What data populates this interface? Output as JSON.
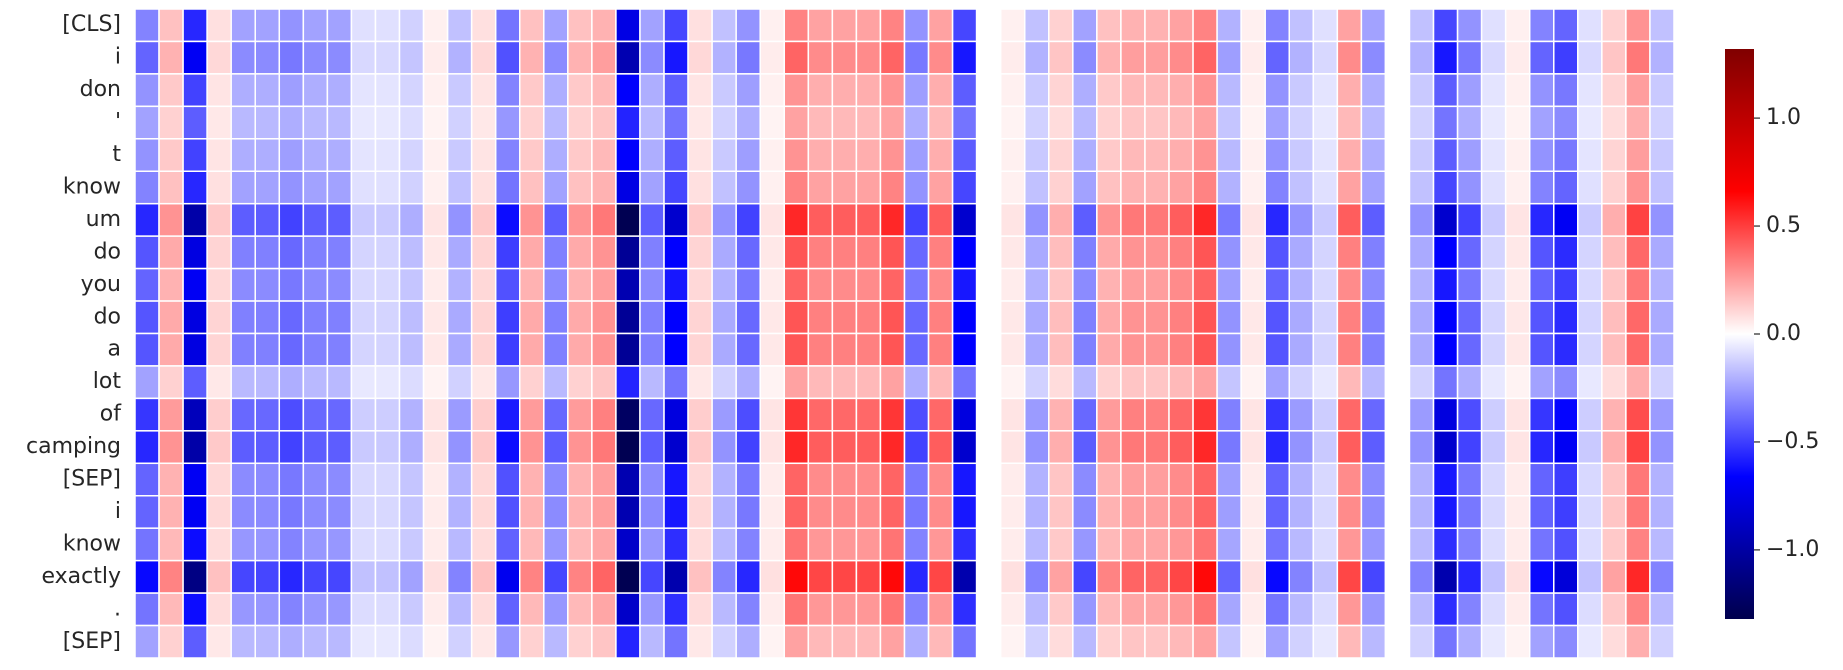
{
  "chart_data": {
    "type": "heatmap",
    "colormap": "seismic",
    "rows": [
      "[CLS]",
      "i",
      "don",
      "'",
      "t",
      "know",
      "um",
      "do",
      "you",
      "do",
      "a",
      "lot",
      "of",
      "camping",
      "[SEP]",
      "i",
      "know",
      "exactly",
      ".",
      "[SEP]"
    ],
    "values": [
      [
        -0.32,
        0.16,
        -0.56,
        0.08,
        -0.24,
        -0.24,
        -0.28,
        -0.24,
        -0.24,
        -0.08,
        -0.08,
        -0.12,
        0.04,
        -0.16,
        0.08,
        -0.36,
        0.16,
        -0.24,
        0.16,
        0.2,
        -0.76,
        -0.24,
        -0.48,
        0.08,
        -0.16,
        -0.28,
        0.04,
        0.32,
        0.24,
        0.24,
        0.24,
        0.32,
        -0.28,
        0.24,
        -0.48,
        0,
        0.04,
        -0.16,
        0.12,
        -0.24,
        0.16,
        0.2,
        0.2,
        0.24,
        0.32,
        -0.2,
        0.04,
        -0.32,
        -0.16,
        -0.08,
        0.24,
        -0.24,
        0,
        -0.16,
        -0.48,
        -0.28,
        -0.08,
        0.04,
        -0.32,
        -0.4,
        -0.08,
        0.12,
        0.28,
        -0.16
      ],
      [
        -0.4,
        0.2,
        -0.7,
        0.1,
        -0.3,
        -0.3,
        -0.35,
        -0.3,
        -0.3,
        -0.1,
        -0.1,
        -0.15,
        0.05,
        -0.2,
        0.1,
        -0.45,
        0.2,
        -0.3,
        0.2,
        0.25,
        -0.95,
        -0.3,
        -0.6,
        0.1,
        -0.2,
        -0.35,
        0.05,
        0.4,
        0.3,
        0.3,
        0.3,
        0.4,
        -0.35,
        0.3,
        -0.6,
        0,
        0.05,
        -0.2,
        0.15,
        -0.3,
        0.2,
        0.25,
        0.25,
        0.3,
        0.4,
        -0.25,
        0.05,
        -0.4,
        -0.2,
        -0.1,
        0.3,
        -0.3,
        0,
        -0.2,
        -0.6,
        -0.35,
        -0.1,
        0.05,
        -0.4,
        -0.5,
        -0.1,
        0.15,
        0.35,
        -0.2
      ],
      [
        -0.28,
        0.14,
        -0.49,
        0.07,
        -0.21,
        -0.21,
        -0.25,
        -0.21,
        -0.21,
        -0.07,
        -0.07,
        -0.11,
        0.04,
        -0.14,
        0.07,
        -0.32,
        0.14,
        -0.21,
        0.14,
        0.18,
        -0.67,
        -0.21,
        -0.42,
        0.07,
        -0.14,
        -0.25,
        0.04,
        0.28,
        0.21,
        0.21,
        0.21,
        0.28,
        -0.25,
        0.21,
        -0.42,
        0,
        0.04,
        -0.14,
        0.11,
        -0.21,
        0.14,
        0.18,
        0.18,
        0.21,
        0.28,
        -0.18,
        0.04,
        -0.28,
        -0.14,
        -0.07,
        0.21,
        -0.21,
        0,
        -0.14,
        -0.42,
        -0.25,
        -0.07,
        0.04,
        -0.28,
        -0.35,
        -0.07,
        0.11,
        0.25,
        -0.14
      ],
      [
        -0.24,
        0.12,
        -0.42,
        0.06,
        -0.18,
        -0.18,
        -0.21,
        -0.18,
        -0.18,
        -0.06,
        -0.06,
        -0.09,
        0.03,
        -0.12,
        0.06,
        -0.27,
        0.12,
        -0.18,
        0.12,
        0.15,
        -0.57,
        -0.18,
        -0.36,
        0.06,
        -0.12,
        -0.21,
        0.03,
        0.24,
        0.18,
        0.18,
        0.18,
        0.24,
        -0.21,
        0.18,
        -0.36,
        0,
        0.03,
        -0.12,
        0.09,
        -0.18,
        0.12,
        0.15,
        0.15,
        0.18,
        0.24,
        -0.15,
        0.03,
        -0.24,
        -0.12,
        -0.06,
        0.18,
        -0.18,
        0,
        -0.12,
        -0.36,
        -0.21,
        -0.06,
        0.03,
        -0.24,
        -0.3,
        -0.06,
        0.09,
        0.21,
        -0.12
      ],
      [
        -0.28,
        0.14,
        -0.49,
        0.07,
        -0.21,
        -0.21,
        -0.25,
        -0.21,
        -0.21,
        -0.07,
        -0.07,
        -0.11,
        0.04,
        -0.14,
        0.07,
        -0.32,
        0.14,
        -0.21,
        0.14,
        0.18,
        -0.67,
        -0.21,
        -0.42,
        0.07,
        -0.14,
        -0.25,
        0.04,
        0.28,
        0.21,
        0.21,
        0.21,
        0.28,
        -0.25,
        0.21,
        -0.42,
        0,
        0.04,
        -0.14,
        0.11,
        -0.21,
        0.14,
        0.18,
        0.18,
        0.21,
        0.28,
        -0.18,
        0.04,
        -0.28,
        -0.14,
        -0.07,
        0.21,
        -0.21,
        0,
        -0.14,
        -0.42,
        -0.25,
        -0.07,
        0.04,
        -0.28,
        -0.35,
        -0.07,
        0.11,
        0.25,
        -0.14
      ],
      [
        -0.32,
        0.16,
        -0.56,
        0.08,
        -0.24,
        -0.24,
        -0.28,
        -0.24,
        -0.24,
        -0.08,
        -0.08,
        -0.12,
        0.04,
        -0.16,
        0.08,
        -0.36,
        0.16,
        -0.24,
        0.16,
        0.2,
        -0.76,
        -0.24,
        -0.48,
        0.08,
        -0.16,
        -0.28,
        0.04,
        0.32,
        0.24,
        0.24,
        0.24,
        0.32,
        -0.28,
        0.24,
        -0.48,
        0,
        0.04,
        -0.16,
        0.12,
        -0.24,
        0.16,
        0.2,
        0.2,
        0.24,
        0.32,
        -0.2,
        0.04,
        -0.32,
        -0.16,
        -0.08,
        0.24,
        -0.24,
        0,
        -0.16,
        -0.48,
        -0.28,
        -0.08,
        0.04,
        -0.32,
        -0.4,
        -0.08,
        0.12,
        0.28,
        -0.16
      ],
      [
        -0.56,
        0.28,
        -0.98,
        0.14,
        -0.42,
        -0.42,
        -0.49,
        -0.42,
        -0.42,
        -0.14,
        -0.14,
        -0.21,
        0.07,
        -0.28,
        0.14,
        -0.63,
        0.28,
        -0.42,
        0.28,
        0.35,
        -1.3,
        -0.42,
        -0.84,
        0.14,
        -0.28,
        -0.49,
        0.07,
        0.56,
        0.42,
        0.42,
        0.42,
        0.56,
        -0.49,
        0.42,
        -0.84,
        0,
        0.07,
        -0.28,
        0.21,
        -0.42,
        0.28,
        0.35,
        0.35,
        0.42,
        0.56,
        -0.35,
        0.07,
        -0.56,
        -0.28,
        -0.14,
        0.42,
        -0.42,
        0,
        -0.28,
        -0.84,
        -0.49,
        -0.14,
        0.07,
        -0.56,
        -0.7,
        -0.14,
        0.21,
        0.49,
        -0.28
      ],
      [
        -0.44,
        0.22,
        -0.77,
        0.11,
        -0.33,
        -0.33,
        -0.39,
        -0.33,
        -0.33,
        -0.11,
        -0.11,
        -0.17,
        0.06,
        -0.22,
        0.11,
        -0.5,
        0.22,
        -0.33,
        0.22,
        0.28,
        -1.05,
        -0.33,
        -0.66,
        0.11,
        -0.22,
        -0.39,
        0.06,
        0.44,
        0.33,
        0.33,
        0.33,
        0.44,
        -0.39,
        0.33,
        -0.66,
        0,
        0.06,
        -0.22,
        0.17,
        -0.33,
        0.22,
        0.28,
        0.28,
        0.33,
        0.44,
        -0.28,
        0.06,
        -0.44,
        -0.22,
        -0.11,
        0.33,
        -0.33,
        0,
        -0.22,
        -0.66,
        -0.39,
        -0.11,
        0.06,
        -0.44,
        -0.55,
        -0.11,
        0.17,
        0.39,
        -0.22
      ],
      [
        -0.4,
        0.2,
        -0.7,
        0.1,
        -0.3,
        -0.3,
        -0.35,
        -0.3,
        -0.3,
        -0.1,
        -0.1,
        -0.15,
        0.05,
        -0.2,
        0.1,
        -0.45,
        0.2,
        -0.3,
        0.2,
        0.25,
        -0.95,
        -0.3,
        -0.6,
        0.1,
        -0.2,
        -0.35,
        0.05,
        0.4,
        0.3,
        0.3,
        0.3,
        0.4,
        -0.35,
        0.3,
        -0.6,
        0,
        0.05,
        -0.2,
        0.15,
        -0.3,
        0.2,
        0.25,
        0.25,
        0.3,
        0.4,
        -0.25,
        0.05,
        -0.4,
        -0.2,
        -0.1,
        0.3,
        -0.3,
        0,
        -0.2,
        -0.6,
        -0.35,
        -0.1,
        0.05,
        -0.4,
        -0.5,
        -0.1,
        0.15,
        0.35,
        -0.2
      ],
      [
        -0.44,
        0.22,
        -0.77,
        0.11,
        -0.33,
        -0.33,
        -0.39,
        -0.33,
        -0.33,
        -0.11,
        -0.11,
        -0.17,
        0.06,
        -0.22,
        0.11,
        -0.5,
        0.22,
        -0.33,
        0.22,
        0.28,
        -1.05,
        -0.33,
        -0.66,
        0.11,
        -0.22,
        -0.39,
        0.06,
        0.44,
        0.33,
        0.33,
        0.33,
        0.44,
        -0.39,
        0.33,
        -0.66,
        0,
        0.06,
        -0.22,
        0.17,
        -0.33,
        0.22,
        0.28,
        0.28,
        0.33,
        0.44,
        -0.28,
        0.06,
        -0.44,
        -0.22,
        -0.11,
        0.33,
        -0.33,
        0,
        -0.22,
        -0.66,
        -0.39,
        -0.11,
        0.06,
        -0.44,
        -0.55,
        -0.11,
        0.17,
        0.39,
        -0.22
      ],
      [
        -0.44,
        0.22,
        -0.77,
        0.11,
        -0.33,
        -0.33,
        -0.39,
        -0.33,
        -0.33,
        -0.11,
        -0.11,
        -0.17,
        0.06,
        -0.22,
        0.11,
        -0.5,
        0.22,
        -0.33,
        0.22,
        0.28,
        -1.05,
        -0.33,
        -0.66,
        0.11,
        -0.22,
        -0.39,
        0.06,
        0.44,
        0.33,
        0.33,
        0.33,
        0.44,
        -0.39,
        0.33,
        -0.66,
        0,
        0.06,
        -0.22,
        0.17,
        -0.33,
        0.22,
        0.28,
        0.28,
        0.33,
        0.44,
        -0.28,
        0.06,
        -0.44,
        -0.22,
        -0.11,
        0.33,
        -0.33,
        0,
        -0.22,
        -0.66,
        -0.39,
        -0.11,
        0.06,
        -0.44,
        -0.55,
        -0.11,
        0.17,
        0.39,
        -0.22
      ],
      [
        -0.24,
        0.12,
        -0.42,
        0.06,
        -0.18,
        -0.18,
        -0.21,
        -0.18,
        -0.18,
        -0.06,
        -0.06,
        -0.09,
        0.03,
        -0.12,
        0.06,
        -0.27,
        0.12,
        -0.18,
        0.12,
        0.15,
        -0.57,
        -0.18,
        -0.36,
        0.06,
        -0.12,
        -0.21,
        0.03,
        0.24,
        0.18,
        0.18,
        0.18,
        0.24,
        -0.21,
        0.18,
        -0.36,
        0,
        0.03,
        -0.12,
        0.09,
        -0.18,
        0.12,
        0.15,
        0.15,
        0.18,
        0.24,
        -0.15,
        0.03,
        -0.24,
        -0.12,
        -0.06,
        0.18,
        -0.18,
        0,
        -0.12,
        -0.36,
        -0.21,
        -0.06,
        0.03,
        -0.24,
        -0.3,
        -0.06,
        0.09,
        0.21,
        -0.12
      ],
      [
        -0.52,
        0.26,
        -0.91,
        0.13,
        -0.39,
        -0.39,
        -0.46,
        -0.39,
        -0.39,
        -0.13,
        -0.13,
        -0.2,
        0.07,
        -0.26,
        0.13,
        -0.59,
        0.26,
        -0.39,
        0.26,
        0.33,
        -1.24,
        -0.39,
        -0.78,
        0.13,
        -0.26,
        -0.46,
        0.07,
        0.52,
        0.39,
        0.39,
        0.39,
        0.52,
        -0.46,
        0.39,
        -0.78,
        0,
        0.07,
        -0.26,
        0.2,
        -0.39,
        0.26,
        0.33,
        0.33,
        0.39,
        0.52,
        -0.33,
        0.07,
        -0.52,
        -0.26,
        -0.13,
        0.39,
        -0.39,
        0,
        -0.26,
        -0.78,
        -0.46,
        -0.13,
        0.07,
        -0.52,
        -0.65,
        -0.13,
        0.2,
        0.46,
        -0.26
      ],
      [
        -0.56,
        0.28,
        -0.98,
        0.14,
        -0.42,
        -0.42,
        -0.49,
        -0.42,
        -0.42,
        -0.14,
        -0.14,
        -0.21,
        0.07,
        -0.28,
        0.14,
        -0.63,
        0.28,
        -0.42,
        0.28,
        0.35,
        -1.3,
        -0.42,
        -0.84,
        0.14,
        -0.28,
        -0.49,
        0.07,
        0.56,
        0.42,
        0.42,
        0.42,
        0.56,
        -0.49,
        0.42,
        -0.84,
        0,
        0.07,
        -0.28,
        0.21,
        -0.42,
        0.28,
        0.35,
        0.35,
        0.42,
        0.56,
        -0.35,
        0.07,
        -0.56,
        -0.28,
        -0.14,
        0.42,
        -0.42,
        0,
        -0.28,
        -0.84,
        -0.49,
        -0.14,
        0.07,
        -0.56,
        -0.7,
        -0.14,
        0.21,
        0.49,
        -0.28
      ],
      [
        -0.4,
        0.2,
        -0.7,
        0.1,
        -0.3,
        -0.3,
        -0.35,
        -0.3,
        -0.3,
        -0.1,
        -0.1,
        -0.15,
        0.05,
        -0.2,
        0.1,
        -0.45,
        0.2,
        -0.3,
        0.2,
        0.25,
        -0.95,
        -0.3,
        -0.6,
        0.1,
        -0.2,
        -0.35,
        0.05,
        0.4,
        0.3,
        0.3,
        0.3,
        0.4,
        -0.35,
        0.3,
        -0.6,
        0,
        0.05,
        -0.2,
        0.15,
        -0.3,
        0.2,
        0.25,
        0.25,
        0.3,
        0.4,
        -0.25,
        0.05,
        -0.4,
        -0.2,
        -0.1,
        0.3,
        -0.3,
        0,
        -0.2,
        -0.6,
        -0.35,
        -0.1,
        0.05,
        -0.4,
        -0.5,
        -0.1,
        0.15,
        0.35,
        -0.2
      ],
      [
        -0.4,
        0.2,
        -0.7,
        0.1,
        -0.3,
        -0.3,
        -0.35,
        -0.3,
        -0.3,
        -0.1,
        -0.1,
        -0.15,
        0.05,
        -0.2,
        0.1,
        -0.45,
        0.2,
        -0.3,
        0.2,
        0.25,
        -0.95,
        -0.3,
        -0.6,
        0.1,
        -0.2,
        -0.35,
        0.05,
        0.4,
        0.3,
        0.3,
        0.3,
        0.4,
        -0.35,
        0.3,
        -0.6,
        0,
        0.05,
        -0.2,
        0.15,
        -0.3,
        0.2,
        0.25,
        0.25,
        0.3,
        0.4,
        -0.25,
        0.05,
        -0.4,
        -0.2,
        -0.1,
        0.3,
        -0.3,
        0,
        -0.2,
        -0.6,
        -0.35,
        -0.1,
        0.05,
        -0.4,
        -0.5,
        -0.1,
        0.15,
        0.35,
        -0.2
      ],
      [
        -0.36,
        0.18,
        -0.63,
        0.09,
        -0.27,
        -0.27,
        -0.32,
        -0.27,
        -0.27,
        -0.09,
        -0.09,
        -0.14,
        0.05,
        -0.18,
        0.09,
        -0.41,
        0.18,
        -0.27,
        0.18,
        0.23,
        -0.86,
        -0.27,
        -0.54,
        0.09,
        -0.18,
        -0.32,
        0.05,
        0.36,
        0.27,
        0.27,
        0.27,
        0.36,
        -0.32,
        0.27,
        -0.54,
        0,
        0.05,
        -0.18,
        0.14,
        -0.27,
        0.18,
        0.23,
        0.23,
        0.27,
        0.36,
        -0.23,
        0.05,
        -0.36,
        -0.18,
        -0.09,
        0.27,
        -0.27,
        0,
        -0.18,
        -0.54,
        -0.32,
        -0.09,
        0.05,
        -0.36,
        -0.45,
        -0.09,
        0.14,
        0.32,
        -0.18
      ],
      [
        -0.64,
        0.32,
        -1.12,
        0.16,
        -0.48,
        -0.48,
        -0.56,
        -0.48,
        -0.48,
        -0.16,
        -0.16,
        -0.24,
        0.08,
        -0.32,
        0.16,
        -0.72,
        0.32,
        -0.48,
        0.32,
        0.4,
        -1.3,
        -0.48,
        -0.96,
        0.16,
        -0.32,
        -0.56,
        0.08,
        0.64,
        0.48,
        0.48,
        0.48,
        0.64,
        -0.56,
        0.48,
        -0.96,
        0,
        0.08,
        -0.32,
        0.24,
        -0.48,
        0.32,
        0.4,
        0.4,
        0.48,
        0.64,
        -0.4,
        0.08,
        -0.64,
        -0.32,
        -0.16,
        0.48,
        -0.48,
        0,
        -0.32,
        -0.96,
        -0.56,
        -0.16,
        0.08,
        -0.64,
        -0.8,
        -0.16,
        0.24,
        0.56,
        -0.32
      ],
      [
        -0.36,
        0.18,
        -0.63,
        0.09,
        -0.27,
        -0.27,
        -0.32,
        -0.27,
        -0.27,
        -0.09,
        -0.09,
        -0.14,
        0.05,
        -0.18,
        0.09,
        -0.41,
        0.18,
        -0.27,
        0.18,
        0.23,
        -0.86,
        -0.27,
        -0.54,
        0.09,
        -0.18,
        -0.32,
        0.05,
        0.36,
        0.27,
        0.27,
        0.27,
        0.36,
        -0.32,
        0.27,
        -0.54,
        0,
        0.05,
        -0.18,
        0.14,
        -0.27,
        0.18,
        0.23,
        0.23,
        0.27,
        0.36,
        -0.23,
        0.05,
        -0.36,
        -0.18,
        -0.09,
        0.27,
        -0.27,
        0,
        -0.18,
        -0.54,
        -0.32,
        -0.09,
        0.05,
        -0.36,
        -0.45,
        -0.09,
        0.14,
        0.32,
        -0.18
      ],
      [
        -0.24,
        0.12,
        -0.42,
        0.06,
        -0.18,
        -0.18,
        -0.21,
        -0.18,
        -0.18,
        -0.06,
        -0.06,
        -0.09,
        0.03,
        -0.12,
        0.06,
        -0.27,
        0.12,
        -0.18,
        0.12,
        0.15,
        -0.57,
        -0.18,
        -0.36,
        0.06,
        -0.12,
        -0.21,
        0.03,
        0.24,
        0.18,
        0.18,
        0.18,
        0.24,
        -0.21,
        0.18,
        -0.36,
        0,
        0.03,
        -0.12,
        0.09,
        -0.18,
        0.12,
        0.15,
        0.15,
        0.18,
        0.24,
        -0.15,
        0.03,
        -0.24,
        -0.12,
        -0.06,
        0.18,
        -0.18,
        0,
        -0.12,
        -0.36,
        -0.21,
        -0.06,
        0.03,
        -0.24,
        -0.3,
        -0.06,
        0.09,
        0.21,
        -0.12
      ]
    ],
    "clim": [
      -1.32,
      1.32
    ],
    "cticks": [
      {
        "value": -1,
        "label": "−1.0"
      },
      {
        "value": -0.5,
        "label": "−0.5"
      },
      {
        "value": 0,
        "label": "0.0"
      },
      0.5,
      {
        "value": 1,
        "label": "1.0"
      }
    ]
  }
}
